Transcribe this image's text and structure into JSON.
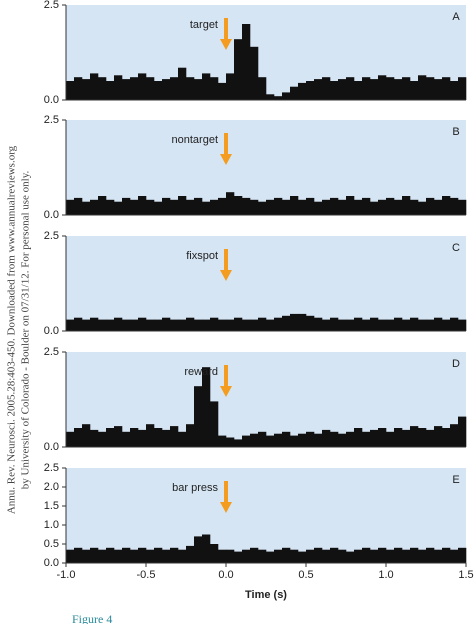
{
  "side_note": [
    "Annu. Rev. Neurosci. 2005.28:403-450. Downloaded from www.annualreviews.org",
    "by University of Colorado - Boulder on 07/31/12. For personal use only."
  ],
  "figure_label": "Figure 4",
  "chart_data": [
    {
      "type": "histogram",
      "panel": "A",
      "annotation": {
        "text": "target",
        "x": 0
      },
      "color": "#111111",
      "background": "#d5e5f4",
      "arrow_color": "#f39c1f",
      "bins": [
        -1,
        -0.95,
        -0.9,
        -0.85,
        -0.8,
        -0.75,
        -0.7,
        -0.65,
        -0.6,
        -0.55,
        -0.5,
        -0.45,
        -0.4,
        -0.35,
        -0.3,
        -0.25,
        -0.2,
        -0.15,
        -0.1,
        -0.05,
        0,
        0.05,
        0.1,
        0.15,
        0.2,
        0.25,
        0.3,
        0.35,
        0.4,
        0.45,
        0.5,
        0.55,
        0.6,
        0.65,
        0.7,
        0.75,
        0.8,
        0.85,
        0.9,
        0.95,
        1,
        1.05,
        1.1,
        1.15,
        1.2,
        1.25,
        1.3,
        1.35,
        1.4,
        1.45,
        1.5
      ],
      "values": [
        0.5,
        0.6,
        0.55,
        0.7,
        0.6,
        0.5,
        0.65,
        0.55,
        0.6,
        0.7,
        0.6,
        0.5,
        0.55,
        0.6,
        0.85,
        0.6,
        0.55,
        0.7,
        0.6,
        0.45,
        0.7,
        1.6,
        2.0,
        1.4,
        0.6,
        0.15,
        0.1,
        0.2,
        0.35,
        0.45,
        0.5,
        0.55,
        0.6,
        0.5,
        0.55,
        0.6,
        0.5,
        0.6,
        0.55,
        0.65,
        0.6,
        0.55,
        0.6,
        0.5,
        0.65,
        0.6,
        0.55,
        0.6,
        0.5,
        0.6
      ],
      "xlim": [
        -1,
        1.5
      ],
      "ylim": [
        0,
        2.5
      ],
      "yticks": [
        {
          "value": 0,
          "label": "0.0"
        },
        2.5
      ]
    },
    {
      "type": "histogram",
      "panel": "B",
      "annotation": {
        "text": "nontarget",
        "x": 0
      },
      "color": "#111111",
      "background": "#d5e5f4",
      "arrow_color": "#f39c1f",
      "bins": [
        -1,
        -0.95,
        -0.9,
        -0.85,
        -0.8,
        -0.75,
        -0.7,
        -0.65,
        -0.6,
        -0.55,
        -0.5,
        -0.45,
        -0.4,
        -0.35,
        -0.3,
        -0.25,
        -0.2,
        -0.15,
        -0.1,
        -0.05,
        0,
        0.05,
        0.1,
        0.15,
        0.2,
        0.25,
        0.3,
        0.35,
        0.4,
        0.45,
        0.5,
        0.55,
        0.6,
        0.65,
        0.7,
        0.75,
        0.8,
        0.85,
        0.9,
        0.95,
        1,
        1.05,
        1.1,
        1.15,
        1.2,
        1.25,
        1.3,
        1.35,
        1.4,
        1.45,
        1.5
      ],
      "values": [
        0.4,
        0.45,
        0.35,
        0.4,
        0.5,
        0.4,
        0.35,
        0.45,
        0.4,
        0.5,
        0.4,
        0.35,
        0.45,
        0.4,
        0.5,
        0.4,
        0.45,
        0.35,
        0.4,
        0.45,
        0.6,
        0.5,
        0.45,
        0.4,
        0.35,
        0.4,
        0.45,
        0.4,
        0.5,
        0.4,
        0.45,
        0.35,
        0.4,
        0.45,
        0.4,
        0.5,
        0.4,
        0.45,
        0.35,
        0.4,
        0.45,
        0.4,
        0.5,
        0.4,
        0.35,
        0.45,
        0.4,
        0.5,
        0.45,
        0.4
      ],
      "xlim": [
        -1,
        1.5
      ],
      "ylim": [
        0,
        2.5
      ],
      "yticks": [
        {
          "value": 0,
          "label": "0.0"
        },
        2.5
      ]
    },
    {
      "type": "histogram",
      "panel": "C",
      "annotation": {
        "text": "fixspot",
        "x": 0
      },
      "color": "#111111",
      "background": "#d5e5f4",
      "arrow_color": "#f39c1f",
      "bins": [
        -1,
        -0.95,
        -0.9,
        -0.85,
        -0.8,
        -0.75,
        -0.7,
        -0.65,
        -0.6,
        -0.55,
        -0.5,
        -0.45,
        -0.4,
        -0.35,
        -0.3,
        -0.25,
        -0.2,
        -0.15,
        -0.1,
        -0.05,
        0,
        0.05,
        0.1,
        0.15,
        0.2,
        0.25,
        0.3,
        0.35,
        0.4,
        0.45,
        0.5,
        0.55,
        0.6,
        0.65,
        0.7,
        0.75,
        0.8,
        0.85,
        0.9,
        0.95,
        1,
        1.05,
        1.1,
        1.15,
        1.2,
        1.25,
        1.3,
        1.35,
        1.4,
        1.45,
        1.5
      ],
      "values": [
        0.3,
        0.35,
        0.3,
        0.35,
        0.3,
        0.3,
        0.35,
        0.3,
        0.3,
        0.35,
        0.3,
        0.3,
        0.35,
        0.3,
        0.3,
        0.35,
        0.3,
        0.3,
        0.35,
        0.3,
        0.3,
        0.35,
        0.3,
        0.3,
        0.35,
        0.3,
        0.35,
        0.4,
        0.45,
        0.45,
        0.4,
        0.35,
        0.3,
        0.35,
        0.3,
        0.3,
        0.35,
        0.3,
        0.35,
        0.3,
        0.3,
        0.35,
        0.3,
        0.35,
        0.3,
        0.3,
        0.35,
        0.3,
        0.35,
        0.3
      ],
      "xlim": [
        -1,
        1.5
      ],
      "ylim": [
        0,
        2.5
      ],
      "yticks": [
        {
          "value": 0,
          "label": "0.0"
        },
        2.5
      ]
    },
    {
      "type": "histogram",
      "panel": "D",
      "annotation": {
        "text": "reward",
        "x": 0
      },
      "color": "#111111",
      "background": "#d5e5f4",
      "arrow_color": "#f39c1f",
      "bins": [
        -1,
        -0.95,
        -0.9,
        -0.85,
        -0.8,
        -0.75,
        -0.7,
        -0.65,
        -0.6,
        -0.55,
        -0.5,
        -0.45,
        -0.4,
        -0.35,
        -0.3,
        -0.25,
        -0.2,
        -0.15,
        -0.1,
        -0.05,
        0,
        0.05,
        0.1,
        0.15,
        0.2,
        0.25,
        0.3,
        0.35,
        0.4,
        0.45,
        0.5,
        0.55,
        0.6,
        0.65,
        0.7,
        0.75,
        0.8,
        0.85,
        0.9,
        0.95,
        1,
        1.05,
        1.1,
        1.15,
        1.2,
        1.25,
        1.3,
        1.35,
        1.4,
        1.45,
        1.5
      ],
      "values": [
        0.4,
        0.5,
        0.6,
        0.45,
        0.4,
        0.5,
        0.55,
        0.4,
        0.5,
        0.45,
        0.6,
        0.5,
        0.45,
        0.55,
        0.4,
        0.6,
        1.6,
        2.1,
        1.2,
        0.3,
        0.25,
        0.2,
        0.3,
        0.35,
        0.4,
        0.3,
        0.35,
        0.4,
        0.3,
        0.35,
        0.4,
        0.35,
        0.45,
        0.4,
        0.35,
        0.4,
        0.5,
        0.4,
        0.45,
        0.5,
        0.4,
        0.5,
        0.45,
        0.55,
        0.5,
        0.45,
        0.55,
        0.5,
        0.6,
        0.8
      ],
      "xlim": [
        -1,
        1.5
      ],
      "ylim": [
        0,
        2.5
      ],
      "yticks": [
        {
          "value": 0,
          "label": "0.0"
        },
        2.5
      ]
    },
    {
      "type": "histogram",
      "panel": "E",
      "annotation": {
        "text": "bar press",
        "x": 0
      },
      "color": "#111111",
      "background": "#d5e5f4",
      "arrow_color": "#f39c1f",
      "bins": [
        -1,
        -0.95,
        -0.9,
        -0.85,
        -0.8,
        -0.75,
        -0.7,
        -0.65,
        -0.6,
        -0.55,
        -0.5,
        -0.45,
        -0.4,
        -0.35,
        -0.3,
        -0.25,
        -0.2,
        -0.15,
        -0.1,
        -0.05,
        0,
        0.05,
        0.1,
        0.15,
        0.2,
        0.25,
        0.3,
        0.35,
        0.4,
        0.45,
        0.5,
        0.55,
        0.6,
        0.65,
        0.7,
        0.75,
        0.8,
        0.85,
        0.9,
        0.95,
        1,
        1.05,
        1.1,
        1.15,
        1.2,
        1.25,
        1.3,
        1.35,
        1.4,
        1.45,
        1.5
      ],
      "values": [
        0.35,
        0.4,
        0.35,
        0.4,
        0.35,
        0.4,
        0.35,
        0.4,
        0.35,
        0.4,
        0.35,
        0.4,
        0.35,
        0.4,
        0.35,
        0.45,
        0.7,
        0.75,
        0.5,
        0.35,
        0.35,
        0.3,
        0.35,
        0.4,
        0.35,
        0.3,
        0.35,
        0.4,
        0.35,
        0.3,
        0.35,
        0.4,
        0.35,
        0.4,
        0.35,
        0.3,
        0.35,
        0.4,
        0.35,
        0.4,
        0.35,
        0.4,
        0.35,
        0.4,
        0.35,
        0.4,
        0.35,
        0.4,
        0.35,
        0.4
      ],
      "xlim": [
        -1,
        1.5
      ],
      "ylim": [
        0,
        2.5
      ],
      "yticks": [
        {
          "value": 0,
          "label": "0.0"
        },
        0.5,
        {
          "value": 1,
          "label": "1.0"
        },
        1.5,
        {
          "value": 2,
          "label": "2.0"
        },
        2.5
      ],
      "xticks": [
        {
          "value": -1,
          "label": "-1.0"
        },
        -0.5,
        {
          "value": 0,
          "label": "0.0"
        },
        0.5,
        {
          "value": 1,
          "label": "1.0"
        },
        1.5
      ],
      "xlabel": "Time (s)"
    }
  ]
}
